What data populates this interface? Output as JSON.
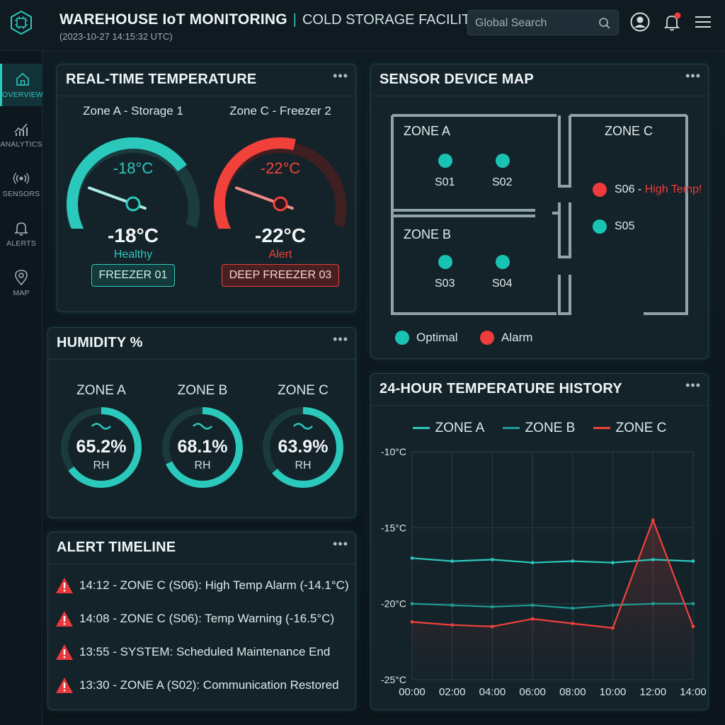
{
  "header": {
    "title": "WAREHOUSE IoT MONITORING",
    "separator": "|",
    "facility": "COLD STORAGE FACILITY",
    "timestamp": "(2023-10-27 14:15:32 UTC)",
    "search_placeholder": "Global Search"
  },
  "sidebar": {
    "items": [
      {
        "label": "OVERVIEW",
        "icon": "home-icon"
      },
      {
        "label": "ANALYTICS",
        "icon": "analytics-icon"
      },
      {
        "label": "SENSORS",
        "icon": "sensor-icon"
      },
      {
        "label": "ALERTS",
        "icon": "bell-icon"
      },
      {
        "label": "MAP",
        "icon": "map-pin-icon"
      }
    ]
  },
  "temperature": {
    "title": "REAL-TIME TEMPERATURE",
    "more": "•••",
    "gauges": [
      {
        "zone": "Zone A - Storage 1",
        "value": "-18°C",
        "reading": "-18°C",
        "status": "Healthy",
        "device": "FREEZER 01",
        "level": 0.7,
        "color": "#2bc9bc"
      },
      {
        "zone": "Zone C - Freezer 2",
        "value": "-22°C",
        "reading": "-22°C",
        "status": "Alert",
        "device": "DEEP FREEZER 03",
        "level": 0.55,
        "color": "#f0413b"
      }
    ]
  },
  "humidity": {
    "title": "HUMIDITY %",
    "more": "•••",
    "items": [
      {
        "zone": "ZONE A",
        "value": "65.2%",
        "unit": "RH",
        "level": 0.652
      },
      {
        "zone": "ZONE B",
        "value": "68.1%",
        "unit": "RH",
        "level": 0.681
      },
      {
        "zone": "ZONE C",
        "value": "63.9%",
        "unit": "RH",
        "level": 0.639
      }
    ]
  },
  "alerts": {
    "title": "ALERT TIMELINE",
    "more": "•••",
    "items": [
      "14:12 - ZONE C (S06): High Temp Alarm (-14.1°C)",
      "14:08 - ZONE C (S06): Temp Warning (-16.5°C)",
      "13:55 - SYSTEM: Scheduled Maintenance End",
      "13:30 - ZONE A (S02): Communication Restored"
    ]
  },
  "map": {
    "title": "SENSOR DEVICE MAP",
    "more": "•••",
    "zones": [
      "ZONE A",
      "ZONE B",
      "ZONE C"
    ],
    "sensors": [
      "S01",
      "S02",
      "S03",
      "S04",
      "S05",
      "S06"
    ],
    "s06_separator": " - ",
    "s06_alert": "High Temp!",
    "legend": {
      "optimal": "Optimal",
      "alarm": "Alarm"
    },
    "colors": {
      "optimal": "#19c3b3",
      "alarm": "#ee3b3b"
    }
  },
  "history": {
    "title": "24-HOUR TEMPERATURE HISTORY",
    "more": "•••"
  },
  "chart_data": {
    "type": "line",
    "title": "24-HOUR TEMPERATURE HISTORY",
    "x": [
      "00:00",
      "02:00",
      "04:00",
      "06:00",
      "08:00",
      "10:00",
      "12:00",
      "14:00"
    ],
    "ylim": [
      -25,
      -10
    ],
    "yticks": [
      "-10°C",
      "-15°C",
      "-20°C",
      "-25°C"
    ],
    "grid": true,
    "legend_position": "top",
    "series": [
      {
        "name": "ZONE A",
        "color": "#2bc9bc",
        "values": [
          -17.0,
          -17.2,
          -17.1,
          -17.3,
          -17.2,
          -17.3,
          -17.1,
          -17.2
        ]
      },
      {
        "name": "ZONE B",
        "color": "#1f9c92",
        "values": [
          -20.0,
          -20.1,
          -20.2,
          -20.1,
          -20.3,
          -20.1,
          -20.0,
          -20.0
        ]
      },
      {
        "name": "ZONE C",
        "color": "#f0413b",
        "values": [
          -21.2,
          -21.4,
          -21.5,
          -21.0,
          -21.3,
          -21.6,
          -14.5,
          -21.5
        ]
      }
    ]
  }
}
